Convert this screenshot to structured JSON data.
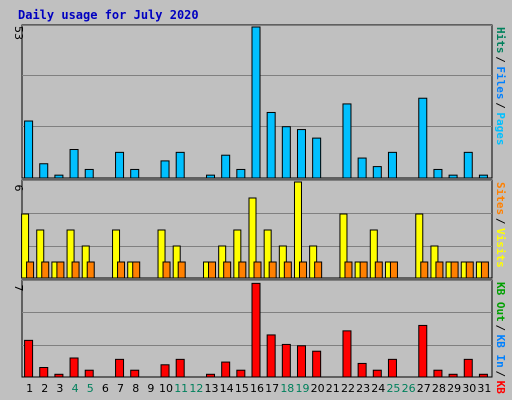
{
  "chart_data": [
    {
      "type": "bar",
      "title": "Daily usage for July 2020",
      "ymax_label": "53",
      "ylim": [
        0,
        53
      ],
      "grid": true,
      "legend": [
        {
          "label": "Pages",
          "color": "#00c0ff"
        },
        {
          "label": "Files",
          "color": "#0080ff"
        },
        {
          "label": "Hits",
          "color": "#00805c"
        }
      ],
      "categories": [
        "1",
        "2",
        "3",
        "4",
        "5",
        "6",
        "7",
        "8",
        "9",
        "10",
        "11",
        "12",
        "13",
        "14",
        "15",
        "16",
        "17",
        "18",
        "19",
        "20",
        "21",
        "22",
        "23",
        "24",
        "25",
        "26",
        "27",
        "28",
        "29",
        "30",
        "31"
      ],
      "series": [
        {
          "name": "Hits",
          "values": [
            20,
            5,
            1,
            10,
            3,
            0,
            9,
            3,
            0,
            6,
            9,
            0,
            1,
            8,
            3,
            53,
            23,
            18,
            17,
            14,
            0,
            26,
            7,
            4,
            9,
            0,
            28,
            3,
            1,
            9,
            1
          ]
        }
      ]
    },
    {
      "type": "bar",
      "ymax_label": "6",
      "ylim": [
        0,
        6
      ],
      "grid": true,
      "legend": [
        {
          "label": "Visits",
          "color": "#ffff00"
        },
        {
          "label": "Sites",
          "color": "#ff8000"
        }
      ],
      "categories": [
        "1",
        "2",
        "3",
        "4",
        "5",
        "6",
        "7",
        "8",
        "9",
        "10",
        "11",
        "12",
        "13",
        "14",
        "15",
        "16",
        "17",
        "18",
        "19",
        "20",
        "21",
        "22",
        "23",
        "24",
        "25",
        "26",
        "27",
        "28",
        "29",
        "30",
        "31"
      ],
      "series": [
        {
          "name": "Visits",
          "values": [
            4,
            3,
            1,
            3,
            2,
            0,
            3,
            1,
            0,
            3,
            2,
            0,
            1,
            2,
            3,
            5,
            3,
            2,
            6,
            2,
            0,
            4,
            1,
            3,
            1,
            0,
            4,
            2,
            1,
            1,
            1
          ]
        },
        {
          "name": "Sites",
          "values": [
            1,
            1,
            1,
            1,
            1,
            0,
            1,
            1,
            0,
            1,
            1,
            0,
            1,
            1,
            1,
            1,
            1,
            1,
            1,
            1,
            0,
            1,
            1,
            1,
            1,
            0,
            1,
            1,
            1,
            1,
            1
          ]
        }
      ]
    },
    {
      "type": "bar",
      "ymax_label": "7",
      "ylim": [
        0,
        7
      ],
      "grid": true,
      "legend": [
        {
          "label": "KB F",
          "color": "#ff0000"
        },
        {
          "label": "KB In",
          "color": "#0080ff"
        },
        {
          "label": "KB Out",
          "color": "#00a000"
        }
      ],
      "categories": [
        "1",
        "2",
        "3",
        "4",
        "5",
        "6",
        "7",
        "8",
        "9",
        "10",
        "11",
        "12",
        "13",
        "14",
        "15",
        "16",
        "17",
        "18",
        "19",
        "20",
        "21",
        "22",
        "23",
        "24",
        "25",
        "26",
        "27",
        "28",
        "29",
        "30",
        "31"
      ],
      "series": [
        {
          "name": "KB F",
          "values": [
            2.7,
            0.7,
            0.2,
            1.4,
            0.5,
            0,
            1.3,
            0.5,
            0,
            0.9,
            1.3,
            0,
            0.2,
            1.1,
            0.5,
            6.9,
            3.1,
            2.4,
            2.3,
            1.9,
            0,
            3.4,
            1.0,
            0.5,
            1.3,
            0,
            3.8,
            0.5,
            0.2,
            1.3,
            0.2
          ]
        }
      ]
    }
  ],
  "x_axis": {
    "labels": [
      "1",
      "2",
      "3",
      "4",
      "5",
      "6",
      "7",
      "8",
      "9",
      "10",
      "11",
      "12",
      "13",
      "14",
      "15",
      "16",
      "17",
      "18",
      "19",
      "20",
      "21",
      "22",
      "23",
      "24",
      "25",
      "26",
      "27",
      "28",
      "29",
      "30",
      "31"
    ],
    "weekend_days": [
      "4",
      "5",
      "11",
      "12",
      "18",
      "19",
      "25",
      "26"
    ],
    "weekday_color": "#000000",
    "weekend_color": "#00805c"
  },
  "colors": {
    "background": "#c0c0c0",
    "plot_background": "#c0c0c0",
    "title": "#0000c0",
    "grid": "#808080",
    "bar_outline": "#000000",
    "separator": "#000000"
  }
}
